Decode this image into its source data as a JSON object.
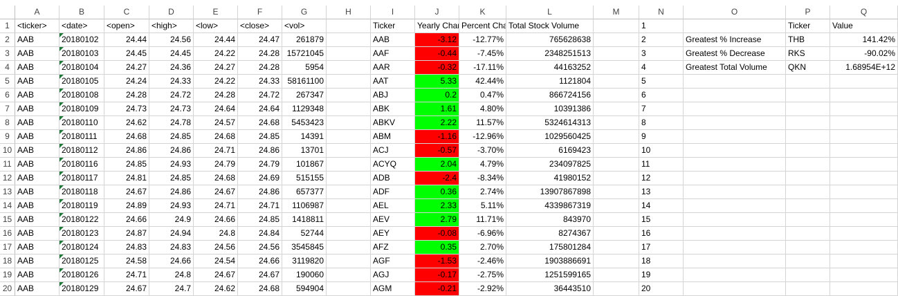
{
  "columns": [
    "A",
    "B",
    "C",
    "D",
    "E",
    "F",
    "G",
    "H",
    "I",
    "J",
    "K",
    "L",
    "M",
    "N",
    "O",
    "P",
    "Q"
  ],
  "rows": [
    {
      "n": "1",
      "a": "<ticker>",
      "b": "<date>",
      "c": "<open>",
      "d": "<high>",
      "e": "<low>",
      "f": "<close>",
      "g": "<vol>",
      "i": "Ticker",
      "j": "Yearly Change",
      "k": "Percent Change",
      "l": "Total Stock Volume",
      "o": "",
      "p": "Ticker",
      "q": "Value"
    },
    {
      "n": "2",
      "a": "AAB",
      "b": "20180102",
      "c": "24.44",
      "d": "24.56",
      "e": "24.44",
      "f": "24.47",
      "g": "261879",
      "i": "AAB",
      "j": "-3.12",
      "k": "-12.77%",
      "l": "765628638",
      "o": "Greatest % Increase",
      "p": "THB",
      "q": "141.42%"
    },
    {
      "n": "3",
      "a": "AAB",
      "b": "20180103",
      "c": "24.45",
      "d": "24.45",
      "e": "24.22",
      "f": "24.28",
      "g": "15721045",
      "i": "AAF",
      "j": "-0.44",
      "k": "-7.45%",
      "l": "2348251513",
      "o": "Greatest % Decrease",
      "p": "RKS",
      "q": "-90.02%"
    },
    {
      "n": "4",
      "a": "AAB",
      "b": "20180104",
      "c": "24.27",
      "d": "24.36",
      "e": "24.27",
      "f": "24.28",
      "g": "5954",
      "i": "AAR",
      "j": "-0.32",
      "k": "-17.11%",
      "l": "44163252",
      "o": "Greatest Total Volume",
      "p": "QKN",
      "q": "1.68954E+12"
    },
    {
      "n": "5",
      "a": "AAB",
      "b": "20180105",
      "c": "24.24",
      "d": "24.33",
      "e": "24.22",
      "f": "24.33",
      "g": "58161100",
      "i": "AAT",
      "j": "5.33",
      "k": "42.44%",
      "l": "1121804",
      "o": "",
      "p": "",
      "q": ""
    },
    {
      "n": "6",
      "a": "AAB",
      "b": "20180108",
      "c": "24.28",
      "d": "24.72",
      "e": "24.28",
      "f": "24.72",
      "g": "267347",
      "i": "ABJ",
      "j": "0.2",
      "k": "0.47%",
      "l": "866724156",
      "o": "",
      "p": "",
      "q": ""
    },
    {
      "n": "7",
      "a": "AAB",
      "b": "20180109",
      "c": "24.73",
      "d": "24.73",
      "e": "24.64",
      "f": "24.64",
      "g": "1129348",
      "i": "ABK",
      "j": "1.61",
      "k": "4.80%",
      "l": "10391386",
      "o": "",
      "p": "",
      "q": ""
    },
    {
      "n": "8",
      "a": "AAB",
      "b": "20180110",
      "c": "24.62",
      "d": "24.78",
      "e": "24.57",
      "f": "24.68",
      "g": "5453423",
      "i": "ABKV",
      "j": "2.22",
      "k": "11.57%",
      "l": "5324614313",
      "o": "",
      "p": "",
      "q": ""
    },
    {
      "n": "9",
      "a": "AAB",
      "b": "20180111",
      "c": "24.68",
      "d": "24.85",
      "e": "24.68",
      "f": "24.85",
      "g": "14391",
      "i": "ABM",
      "j": "-1.16",
      "k": "-12.96%",
      "l": "1029560425",
      "o": "",
      "p": "",
      "q": ""
    },
    {
      "n": "10",
      "a": "AAB",
      "b": "20180112",
      "c": "24.86",
      "d": "24.86",
      "e": "24.71",
      "f": "24.86",
      "g": "13701",
      "i": "ACJ",
      "j": "-0.57",
      "k": "-3.70%",
      "l": "6169423",
      "o": "",
      "p": "",
      "q": ""
    },
    {
      "n": "11",
      "a": "AAB",
      "b": "20180116",
      "c": "24.85",
      "d": "24.93",
      "e": "24.79",
      "f": "24.79",
      "g": "101867",
      "i": "ACYQ",
      "j": "2.04",
      "k": "4.79%",
      "l": "234097825",
      "o": "",
      "p": "",
      "q": ""
    },
    {
      "n": "12",
      "a": "AAB",
      "b": "20180117",
      "c": "24.81",
      "d": "24.85",
      "e": "24.68",
      "f": "24.69",
      "g": "515155",
      "i": "ADB",
      "j": "-2.4",
      "k": "-8.34%",
      "l": "41980152",
      "o": "",
      "p": "",
      "q": ""
    },
    {
      "n": "13",
      "a": "AAB",
      "b": "20180118",
      "c": "24.67",
      "d": "24.86",
      "e": "24.67",
      "f": "24.86",
      "g": "657377",
      "i": "ADF",
      "j": "0.36",
      "k": "2.74%",
      "l": "13907867898",
      "o": "",
      "p": "",
      "q": ""
    },
    {
      "n": "14",
      "a": "AAB",
      "b": "20180119",
      "c": "24.89",
      "d": "24.93",
      "e": "24.71",
      "f": "24.71",
      "g": "1106987",
      "i": "AEL",
      "j": "2.33",
      "k": "5.11%",
      "l": "4339867319",
      "o": "",
      "p": "",
      "q": ""
    },
    {
      "n": "15",
      "a": "AAB",
      "b": "20180122",
      "c": "24.66",
      "d": "24.9",
      "e": "24.66",
      "f": "24.85",
      "g": "1418811",
      "i": "AEV",
      "j": "2.79",
      "k": "11.71%",
      "l": "843970",
      "o": "",
      "p": "",
      "q": ""
    },
    {
      "n": "16",
      "a": "AAB",
      "b": "20180123",
      "c": "24.87",
      "d": "24.94",
      "e": "24.8",
      "f": "24.84",
      "g": "52744",
      "i": "AEY",
      "j": "-0.08",
      "k": "-6.96%",
      "l": "8274367",
      "o": "",
      "p": "",
      "q": ""
    },
    {
      "n": "17",
      "a": "AAB",
      "b": "20180124",
      "c": "24.83",
      "d": "24.83",
      "e": "24.56",
      "f": "24.56",
      "g": "3545845",
      "i": "AFZ",
      "j": "0.35",
      "k": "2.70%",
      "l": "175801284",
      "o": "",
      "p": "",
      "q": ""
    },
    {
      "n": "18",
      "a": "AAB",
      "b": "20180125",
      "c": "24.58",
      "d": "24.66",
      "e": "24.54",
      "f": "24.66",
      "g": "3119820",
      "i": "AGF",
      "j": "-1.53",
      "k": "-2.46%",
      "l": "1903886691",
      "o": "",
      "p": "",
      "q": ""
    },
    {
      "n": "19",
      "a": "AAB",
      "b": "20180126",
      "c": "24.71",
      "d": "24.8",
      "e": "24.67",
      "f": "24.67",
      "g": "190060",
      "i": "AGJ",
      "j": "-0.17",
      "k": "-2.75%",
      "l": "1251599165",
      "o": "",
      "p": "",
      "q": ""
    },
    {
      "n": "20",
      "a": "AAB",
      "b": "20180129",
      "c": "24.67",
      "d": "24.7",
      "e": "24.62",
      "f": "24.68",
      "g": "594904",
      "i": "AGM",
      "j": "-0.21",
      "k": "-2.92%",
      "l": "36443510",
      "o": "",
      "p": "",
      "q": ""
    }
  ],
  "colors": {
    "positive": "#00ff00",
    "negative": "#ff0000",
    "header_text": "#444444",
    "grid": "#d4d4d4"
  }
}
